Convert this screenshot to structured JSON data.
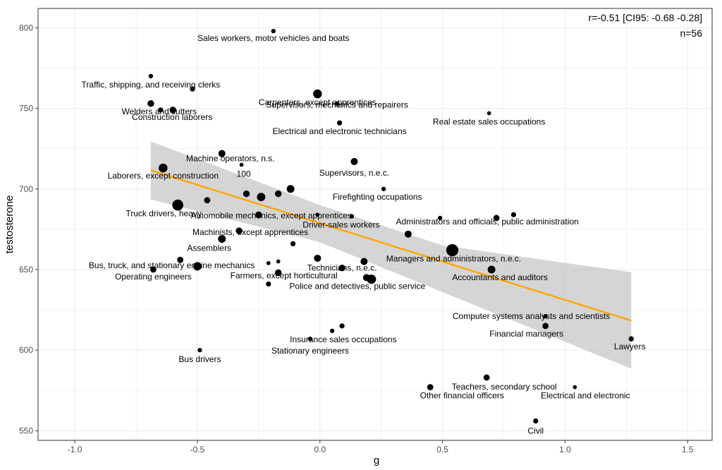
{
  "chart_data": {
    "type": "scatter",
    "title": "",
    "xlabel": "g",
    "ylabel": "testosterone",
    "xlim": [
      -1.15,
      1.6
    ],
    "ylim": [
      544,
      812
    ],
    "x_ticks": [
      -1.0,
      -0.5,
      0.0,
      0.5,
      1.0,
      1.5
    ],
    "x_tick_labels": [
      "-1.0",
      "-0.5",
      "0.0",
      "0.5",
      "1.0",
      "1.5"
    ],
    "y_ticks": [
      550,
      600,
      650,
      700,
      750,
      800
    ],
    "y_tick_labels": [
      "550",
      "600",
      "650",
      "700",
      "750",
      "800"
    ],
    "grid": true,
    "annotations": [
      "r=-0.51 [CI95: -0.68 -0.28]",
      "n=56"
    ],
    "colors": {
      "points": "#000000",
      "fit_line": "#FFA500",
      "ci_band": "#BEBEBE",
      "panel_border": "#333333",
      "grid": "#EBEBEB"
    },
    "fit": {
      "x": [
        -0.69,
        1.27
      ],
      "y": [
        711.6,
        618.3
      ]
    },
    "ci_band": {
      "x": [
        -0.69,
        0.0,
        0.5,
        1.27
      ],
      "upper": [
        729.5,
        690,
        665,
        648.3
      ],
      "lower": [
        693.5,
        667,
        636,
        588.5
      ]
    },
    "points": [
      {
        "x": -0.19,
        "y": 798,
        "size": 1,
        "label": "Sales workers, motor vehicles and boats"
      },
      {
        "x": -0.69,
        "y": 770,
        "size": 1,
        "label": "Traffic, shipping, and receiving clerks"
      },
      {
        "x": -0.52,
        "y": 762,
        "size": 1.3,
        "label": ""
      },
      {
        "x": -0.69,
        "y": 753,
        "size": 2,
        "label": ""
      },
      {
        "x": -0.65,
        "y": 749,
        "size": 1.3,
        "label": "Welders and cutters"
      },
      {
        "x": -0.6,
        "y": 749,
        "size": 2,
        "label": "Construction laborers"
      },
      {
        "x": -0.01,
        "y": 759,
        "size": 3,
        "label": "Carpenters, except apprentices"
      },
      {
        "x": 0.07,
        "y": 753,
        "size": 1,
        "label": "Supervisors, mechanics and repairers"
      },
      {
        "x": 0.69,
        "y": 747,
        "size": 0.8,
        "label": "Real estate sales occupations"
      },
      {
        "x": 0.08,
        "y": 741,
        "size": 1.3,
        "label": "Electrical and electronic technicians"
      },
      {
        "x": -0.4,
        "y": 722,
        "size": 2.2,
        "label": "Machine operators, n.s."
      },
      {
        "x": -0.32,
        "y": 715,
        "size": 0.8,
        "label": "100"
      },
      {
        "x": -0.64,
        "y": 713,
        "size": 3,
        "label": "Laborers, except construction"
      },
      {
        "x": 0.14,
        "y": 717,
        "size": 2.2,
        "label": "Supervisors, n.e.c."
      },
      {
        "x": -0.12,
        "y": 700,
        "size": 2.5,
        "label": ""
      },
      {
        "x": 0.26,
        "y": 700,
        "size": 1,
        "label": "Firefighting occupations"
      },
      {
        "x": -0.3,
        "y": 697,
        "size": 2,
        "label": ""
      },
      {
        "x": -0.24,
        "y": 695,
        "size": 2.8,
        "label": ""
      },
      {
        "x": -0.17,
        "y": 697,
        "size": 2,
        "label": ""
      },
      {
        "x": -0.46,
        "y": 693,
        "size": 1.8,
        "label": ""
      },
      {
        "x": -0.58,
        "y": 690,
        "size": 4,
        "label": "Truck drivers, heavy"
      },
      {
        "x": -0.25,
        "y": 684,
        "size": 2,
        "label": "Automobile mechanics, except apprentices"
      },
      {
        "x": -0.01,
        "y": 684,
        "size": 0.8,
        "label": ""
      },
      {
        "x": 0.13,
        "y": 683,
        "size": 1,
        "label": "Driver-sales workers"
      },
      {
        "x": 0.49,
        "y": 682,
        "size": 1,
        "label": "Administrators and officials, public administration"
      },
      {
        "x": 0.72,
        "y": 682,
        "size": 1.8,
        "label": ""
      },
      {
        "x": 0.79,
        "y": 684,
        "size": 1.3,
        "label": ""
      },
      {
        "x": -0.33,
        "y": 674,
        "size": 2,
        "label": "Machinists, except apprentices"
      },
      {
        "x": 0.36,
        "y": 672,
        "size": 2.2,
        "label": ""
      },
      {
        "x": -0.4,
        "y": 669,
        "size": 2.5,
        "label": "Assemblers"
      },
      {
        "x": -0.11,
        "y": 666,
        "size": 1.3,
        "label": ""
      },
      {
        "x": 0.54,
        "y": 662,
        "size": 4.5,
        "label": "Managers and administrators, n.e.c."
      },
      {
        "x": -0.57,
        "y": 656,
        "size": 1.8,
        "label": "Bus, truck, and stationary engine mechanics"
      },
      {
        "x": -0.5,
        "y": 652,
        "size": 2.8,
        "label": ""
      },
      {
        "x": -0.68,
        "y": 650,
        "size": 1.8,
        "label": "Operating engineers"
      },
      {
        "x": -0.21,
        "y": 654,
        "size": 0.8,
        "label": ""
      },
      {
        "x": -0.17,
        "y": 655,
        "size": 0.8,
        "label": ""
      },
      {
        "x": -0.01,
        "y": 657,
        "size": 2.2,
        "label": ""
      },
      {
        "x": 0.18,
        "y": 655,
        "size": 2.2,
        "label": ""
      },
      {
        "x": 0.09,
        "y": 651,
        "size": 2,
        "label": "Technicians, n.e.c."
      },
      {
        "x": 0.7,
        "y": 650,
        "size": 2.5,
        "label": "Accountants and auditors"
      },
      {
        "x": -0.17,
        "y": 648,
        "size": 2,
        "label": "Farmers, except horticultural"
      },
      {
        "x": -0.21,
        "y": 641,
        "size": 1.3,
        "label": ""
      },
      {
        "x": 0.19,
        "y": 645,
        "size": 2.2,
        "label": ""
      },
      {
        "x": 0.21,
        "y": 644,
        "size": 3.2,
        "label": "Police and detectives, public service"
      },
      {
        "x": 0.92,
        "y": 621,
        "size": 1,
        "label": "Computer systems analysts and scientists"
      },
      {
        "x": 0.92,
        "y": 615,
        "size": 1.8,
        "label": "Financial managers"
      },
      {
        "x": 1.27,
        "y": 607,
        "size": 1.3,
        "label": "Lawyers"
      },
      {
        "x": 0.09,
        "y": 615,
        "size": 1.3,
        "label": ""
      },
      {
        "x": 0.05,
        "y": 612,
        "size": 1,
        "label": ""
      },
      {
        "x": -0.04,
        "y": 607,
        "size": 1,
        "label": "Insurance sales occupations"
      },
      {
        "x": -0.04,
        "y": 604,
        "size": 0,
        "label": "Stationary engineers"
      },
      {
        "x": -0.49,
        "y": 600,
        "size": 1,
        "label": "Bus drivers"
      },
      {
        "x": 0.68,
        "y": 583,
        "size": 1.8,
        "label": "Teachers, secondary school"
      },
      {
        "x": 0.45,
        "y": 577,
        "size": 1.8,
        "label": "Other financial officers"
      },
      {
        "x": 1.04,
        "y": 577,
        "size": 0.8,
        "label": "Electrical and electronic"
      },
      {
        "x": 0.88,
        "y": 556,
        "size": 1.3,
        "label": "Civil"
      }
    ]
  }
}
